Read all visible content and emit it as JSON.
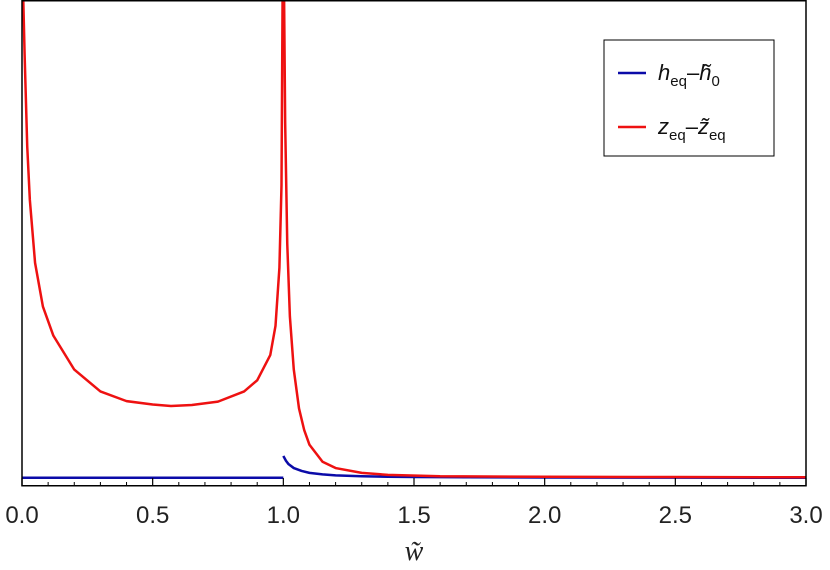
{
  "chart_data": {
    "type": "line",
    "title": "",
    "xlabel": "w̃",
    "ylabel": "",
    "xlim": [
      0.0,
      3.0
    ],
    "ylim": [
      0.0,
      1.0
    ],
    "x_ticks": [
      "0.0",
      "0.5",
      "1.0",
      "1.5",
      "2.0",
      "2.5",
      "3.0"
    ],
    "y_ticks": [],
    "grid": false,
    "legend": "top-right",
    "series": [
      {
        "name": "h̃eq–h̃0",
        "legend_parts": {
          "base": "h",
          "sub": "eq",
          "sep": "–",
          "base2": "h̃",
          "sub2": "0"
        },
        "color": "#0b0ba8",
        "segments": [
          [
            [
              0.0,
              0.017
            ],
            [
              1.0,
              0.017
            ]
          ],
          [
            [
              1.0,
              0.062
            ],
            [
              1.01,
              0.052
            ],
            [
              1.02,
              0.045
            ],
            [
              1.04,
              0.037
            ],
            [
              1.07,
              0.031
            ],
            [
              1.1,
              0.027
            ],
            [
              1.15,
              0.024
            ],
            [
              1.2,
              0.022
            ],
            [
              1.3,
              0.02
            ],
            [
              1.4,
              0.019
            ],
            [
              1.5,
              0.0185
            ],
            [
              1.7,
              0.018
            ],
            [
              2.0,
              0.0175
            ],
            [
              2.5,
              0.0172
            ],
            [
              3.0,
              0.017
            ]
          ]
        ]
      },
      {
        "name": "z̃eq–z̃eq",
        "legend_parts": {
          "base": "z",
          "sub": "eq",
          "sep": "–",
          "base2": "z̃",
          "sub2": "eq"
        },
        "color": "#ee1111",
        "segments": [
          [
            [
              0.005,
              1.0
            ],
            [
              0.01,
              0.89
            ],
            [
              0.02,
              0.7
            ],
            [
              0.03,
              0.59
            ],
            [
              0.05,
              0.46
            ],
            [
              0.08,
              0.37
            ],
            [
              0.12,
              0.31
            ],
            [
              0.2,
              0.24
            ],
            [
              0.3,
              0.195
            ],
            [
              0.4,
              0.175
            ],
            [
              0.5,
              0.168
            ],
            [
              0.57,
              0.165
            ],
            [
              0.65,
              0.167
            ],
            [
              0.75,
              0.174
            ],
            [
              0.85,
              0.195
            ],
            [
              0.9,
              0.218
            ],
            [
              0.95,
              0.27
            ],
            [
              0.97,
              0.33
            ],
            [
              0.985,
              0.45
            ],
            [
              0.993,
              0.62
            ],
            [
              0.997,
              1.0
            ]
          ],
          [
            [
              1.003,
              1.0
            ],
            [
              1.007,
              0.75
            ],
            [
              1.015,
              0.5
            ],
            [
              1.025,
              0.35
            ],
            [
              1.04,
              0.24
            ],
            [
              1.06,
              0.16
            ],
            [
              1.08,
              0.115
            ],
            [
              1.1,
              0.085
            ],
            [
              1.15,
              0.05
            ],
            [
              1.2,
              0.037
            ],
            [
              1.3,
              0.027
            ],
            [
              1.4,
              0.023
            ],
            [
              1.6,
              0.02
            ],
            [
              2.0,
              0.019
            ],
            [
              2.5,
              0.0185
            ],
            [
              3.0,
              0.018
            ]
          ]
        ]
      }
    ]
  }
}
